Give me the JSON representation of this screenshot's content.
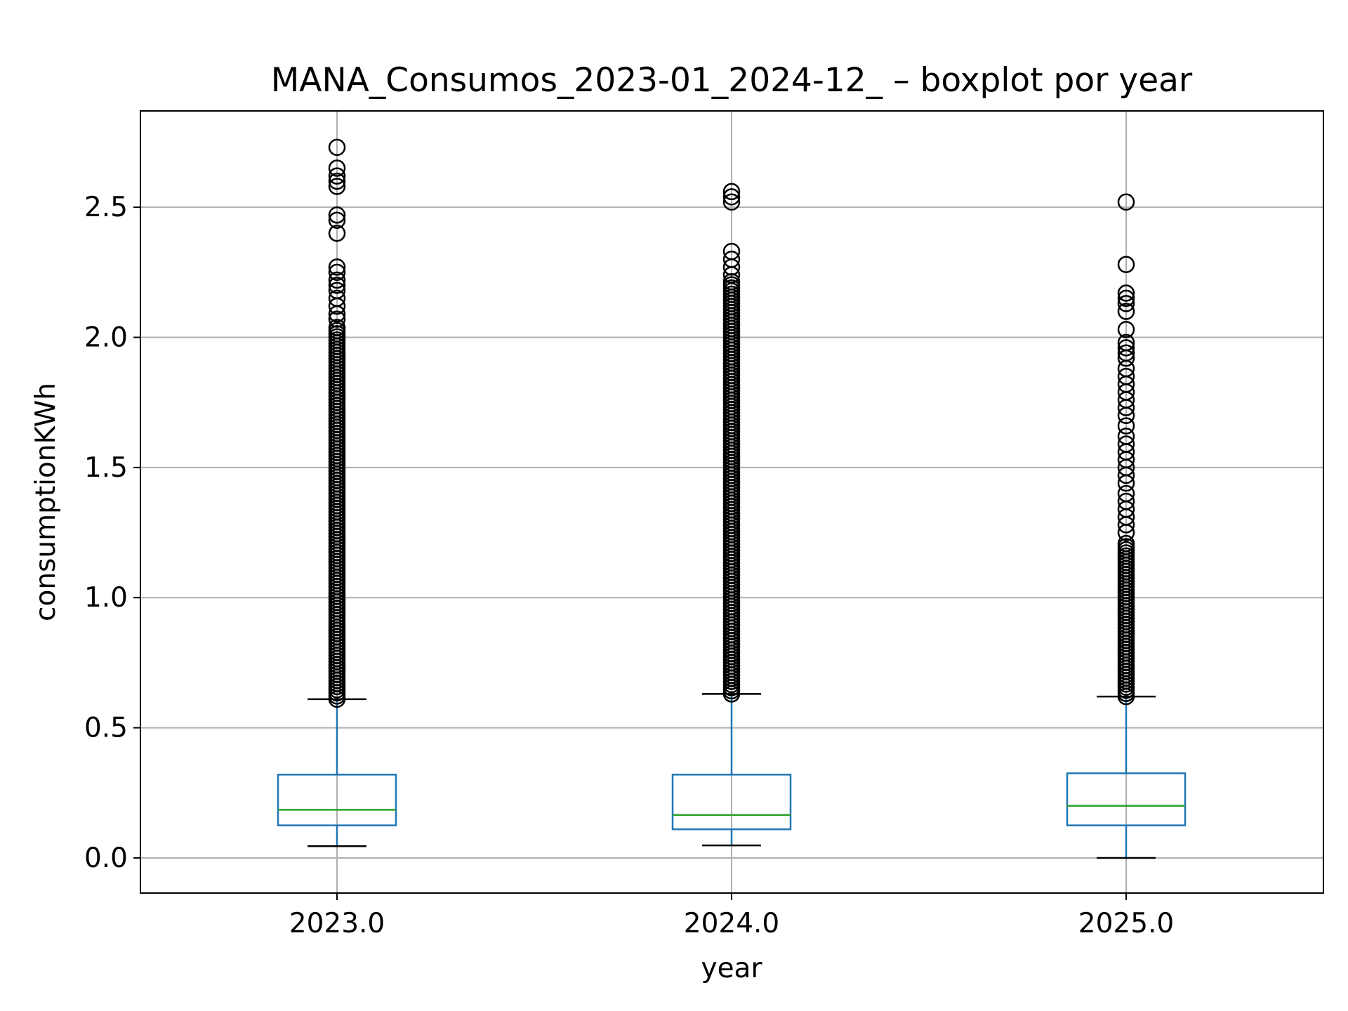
{
  "chart_data": {
    "type": "box",
    "title": "MANA_Consumos_2023-01_2024-12_ – boxplot por year",
    "xlabel": "year",
    "ylabel": "consumptionKWh",
    "categories": [
      "2023.0",
      "2024.0",
      "2025.0"
    ],
    "ylim": [
      -0.135,
      2.87
    ],
    "yticks": [
      "0.0",
      "0.5",
      "1.0",
      "1.5",
      "2.0",
      "2.5"
    ],
    "grid": true,
    "colors": {
      "box": "#1f77b4",
      "median": "#2ca02c",
      "whisker": "#1f77b4",
      "cap": "#000000",
      "flier": "#000000",
      "grid": "#b0b0b0",
      "frame": "#000000"
    },
    "boxes": [
      {
        "category": "2023.0",
        "whisker_low": 0.045,
        "q1": 0.125,
        "median": 0.185,
        "q3": 0.32,
        "whisker_high": 0.61,
        "outliers_range": [
          0.61,
          2.05
        ],
        "outliers_extra": [
          2.07,
          2.09,
          2.12,
          2.15,
          2.18,
          2.2,
          2.22,
          2.25,
          2.27,
          2.4,
          2.45,
          2.47,
          2.58,
          2.6,
          2.62,
          2.65,
          2.73
        ]
      },
      {
        "category": "2024.0",
        "whisker_low": 0.048,
        "q1": 0.11,
        "median": 0.165,
        "q3": 0.32,
        "whisker_high": 0.63,
        "outliers_range": [
          0.63,
          2.22
        ],
        "outliers_extra": [
          2.24,
          2.27,
          2.3,
          2.33,
          2.52,
          2.54,
          2.56
        ]
      },
      {
        "category": "2025.0",
        "whisker_low": 0.0,
        "q1": 0.125,
        "median": 0.2,
        "q3": 0.325,
        "whisker_high": 0.62,
        "outliers_range": [
          0.62,
          1.22
        ],
        "outliers_extra": [
          1.25,
          1.28,
          1.31,
          1.34,
          1.37,
          1.4,
          1.44,
          1.47,
          1.5,
          1.53,
          1.56,
          1.59,
          1.62,
          1.66,
          1.7,
          1.73,
          1.76,
          1.79,
          1.82,
          1.85,
          1.88,
          1.92,
          1.94,
          1.96,
          1.98,
          2.03,
          2.1,
          2.13,
          2.15,
          2.17,
          2.28,
          2.52
        ]
      }
    ]
  }
}
